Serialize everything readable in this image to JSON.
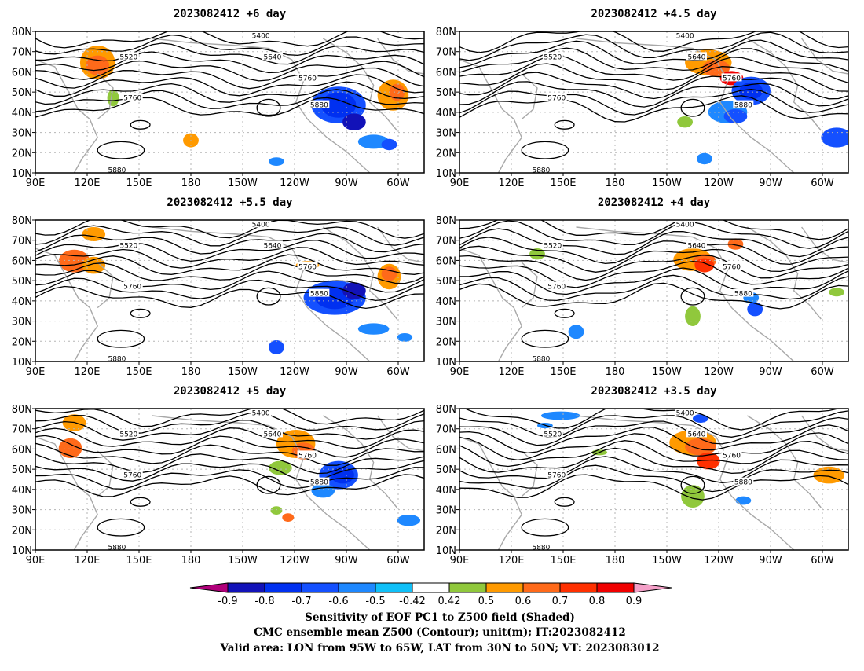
{
  "panels": [
    {
      "title": "2023082412 +6 day"
    },
    {
      "title": "2023082412 +4.5 day"
    },
    {
      "title": "2023082412 +5.5 day"
    },
    {
      "title": "2023082412 +4 day"
    },
    {
      "title": "2023082412 +5 day"
    },
    {
      "title": "2023082412 +3.5 day"
    }
  ],
  "axes": {
    "lat_labels": [
      "80N",
      "70N",
      "60N",
      "50N",
      "40N",
      "30N",
      "20N",
      "10N"
    ],
    "lon_labels": [
      "90E",
      "120E",
      "150E",
      "180",
      "150W",
      "120W",
      "90W",
      "60W"
    ]
  },
  "contour_labels": [
    "5400",
    "5520",
    "5640",
    "5760",
    "5880"
  ],
  "colorbar": {
    "ticks": [
      "-0.9",
      "-0.8",
      "-0.7",
      "-0.6",
      "-0.5",
      "-0.42",
      "0.42",
      "0.5",
      "0.6",
      "0.7",
      "0.8",
      "0.9"
    ],
    "colors": [
      "#b0007a",
      "#1212b8",
      "#0030f0",
      "#1450ff",
      "#1e88ff",
      "#10c0f8",
      "#ffffff",
      "#90c83c",
      "#ff9a00",
      "#ff6a1a",
      "#ff3000",
      "#f00000",
      "#f4a0c8"
    ]
  },
  "caption": [
    "Sensitivity of EOF PC1 to Z500 field (Shaded)",
    "CMC ensemble mean Z500 (Contour); unit(m); IT:2023082412",
    "Valid area: LON from 95W to 65W, LAT from 30N to 50N; VT: 2023083012"
  ]
}
